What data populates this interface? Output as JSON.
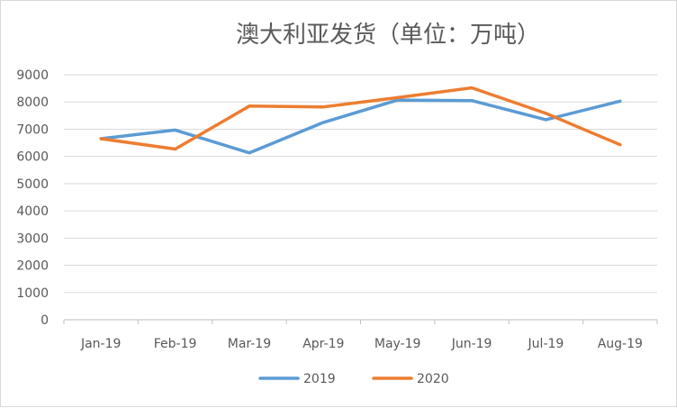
{
  "chart_data": {
    "type": "line",
    "title": "澳大利亚发货（单位：万吨）",
    "xlabel": "",
    "ylabel": "",
    "categories": [
      "Jan-19",
      "Feb-19",
      "Mar-19",
      "Apr-19",
      "May-19",
      "Jun-19",
      "Jul-19",
      "Aug-19"
    ],
    "ylim": [
      0,
      9000
    ],
    "yticks": [
      "0",
      "1000",
      "2000",
      "3000",
      "4000",
      "5000",
      "6000",
      "7000",
      "8000",
      "9000"
    ],
    "grid": true,
    "legend": "bottom",
    "series": [
      {
        "name": "2019",
        "color": "#5b9bd5",
        "values": [
          6650,
          6970,
          6130,
          7250,
          8070,
          8050,
          7350,
          8030
        ]
      },
      {
        "name": "2020",
        "color": "#ed7d31",
        "values": [
          6650,
          6270,
          7850,
          7820,
          8160,
          8520,
          7580,
          6430
        ]
      }
    ]
  }
}
